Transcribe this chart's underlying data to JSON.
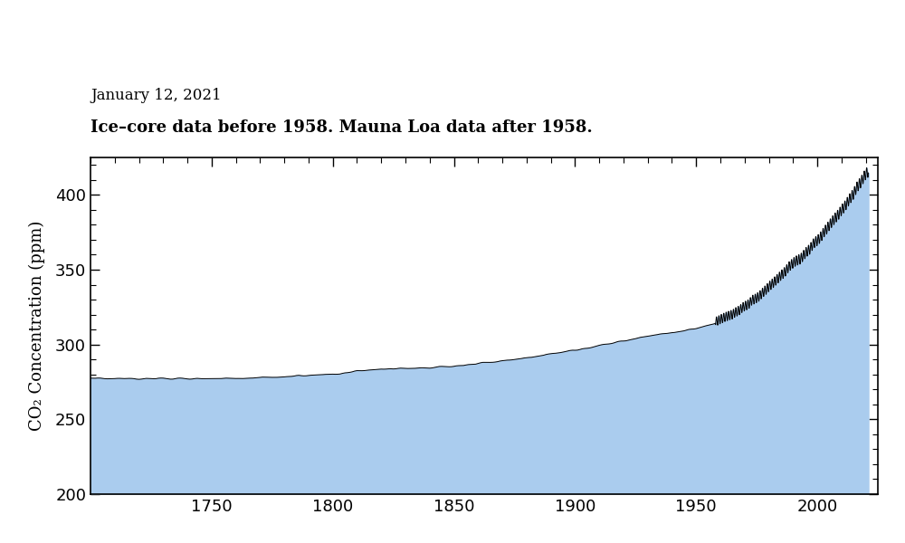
{
  "title_date": "January 12, 2021",
  "title_main": "Ice–core data before 1958. Mauna Loa data after 1958.",
  "ylabel": "CO₂ Concentration (ppm)",
  "xlim": [
    1700,
    2025
  ],
  "ylim": [
    200,
    425
  ],
  "yticks": [
    200,
    250,
    300,
    350,
    400
  ],
  "xticks": [
    1750,
    1800,
    1850,
    1900,
    1950,
    2000
  ],
  "fill_color": "#aaccee",
  "line_color": "#000000",
  "background_color": "#ffffff",
  "transition_year": 1958
}
